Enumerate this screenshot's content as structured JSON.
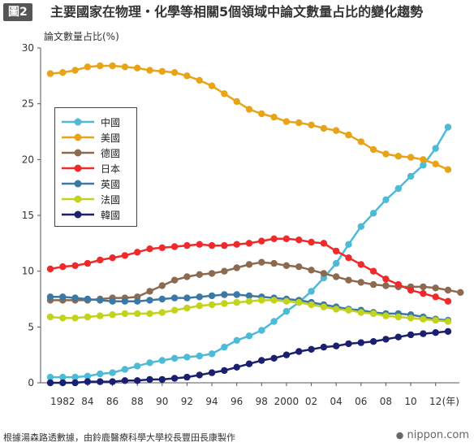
{
  "header": {
    "badge": "圖2",
    "title": "主要國家在物理・化學等相關5個領域中論文數量占比的變化趨勢"
  },
  "source": "根據湯森路透數據，由鈴鹿醫療科學大學校長豐田長康製作",
  "logo": "nippon.com",
  "colors": {
    "china": "#4dbad6",
    "usa": "#e8a317",
    "germany": "#8b6a50",
    "japan": "#ee2a2a",
    "uk": "#3a78a6",
    "france": "#c3d21c",
    "korea": "#1a1f6e"
  },
  "chart_data": {
    "type": "line",
    "title": "主要國家在物理・化學等相關5個領域中論文數量占比的變化趨勢",
    "ylabel": "論文數量占比(%)",
    "xlabel": "(年)",
    "ylim": [
      0,
      30
    ],
    "yticks": [
      "0",
      "5",
      "10",
      "15",
      "20",
      "25",
      "30"
    ],
    "xlim": [
      1981,
      2014
    ],
    "xticks": [
      {
        "year": 1982,
        "label": "1982"
      },
      {
        "year": 1984,
        "label": "84"
      },
      {
        "year": 1986,
        "label": "86"
      },
      {
        "year": 1988,
        "label": "88"
      },
      {
        "year": 1990,
        "label": "90"
      },
      {
        "year": 1992,
        "label": "92"
      },
      {
        "year": 1994,
        "label": "94"
      },
      {
        "year": 1996,
        "label": "96"
      },
      {
        "year": 1998,
        "label": "98"
      },
      {
        "year": 2000,
        "label": "2000"
      },
      {
        "year": 2002,
        "label": "02"
      },
      {
        "year": 2004,
        "label": "04"
      },
      {
        "year": 2006,
        "label": "06"
      },
      {
        "year": 2008,
        "label": "08"
      },
      {
        "year": 2010,
        "label": "10"
      },
      {
        "year": 2012,
        "label": "12"
      }
    ],
    "grid": false,
    "legend_position": "upper-left",
    "x": [
      1981,
      1982,
      1983,
      1984,
      1985,
      1986,
      1987,
      1988,
      1989,
      1990,
      1991,
      1992,
      1993,
      1994,
      1995,
      1996,
      1997,
      1998,
      1999,
      2000,
      2001,
      2002,
      2003,
      2004,
      2005,
      2006,
      2007,
      2008,
      2009,
      2010,
      2011,
      2012,
      2013,
      2014
    ],
    "series": [
      {
        "key": "china",
        "name": "中國",
        "values": [
          0.5,
          0.5,
          0.5,
          0.6,
          0.8,
          0.9,
          1.2,
          1.5,
          1.8,
          2.0,
          2.2,
          2.3,
          2.4,
          2.6,
          3.2,
          3.8,
          4.2,
          4.7,
          5.5,
          6.4,
          7.2,
          8.2,
          9.4,
          10.7,
          12.4,
          14.0,
          15.2,
          16.4,
          17.4,
          18.5,
          19.5,
          21.0,
          22.9,
          null
        ]
      },
      {
        "key": "usa",
        "name": "美國",
        "values": [
          27.7,
          27.8,
          28.0,
          28.3,
          28.4,
          28.4,
          28.3,
          28.2,
          28.0,
          27.9,
          27.8,
          27.5,
          27.1,
          26.6,
          25.9,
          25.2,
          24.5,
          24.1,
          23.8,
          23.4,
          23.3,
          23.1,
          22.8,
          22.6,
          22.2,
          21.6,
          20.9,
          20.5,
          20.3,
          20.2,
          20.0,
          19.6,
          19.1,
          null
        ]
      },
      {
        "key": "germany",
        "name": "德國",
        "values": [
          7.4,
          7.4,
          7.4,
          7.4,
          7.5,
          7.6,
          7.6,
          7.7,
          8.2,
          8.7,
          9.2,
          9.5,
          9.7,
          9.8,
          10.0,
          10.3,
          10.6,
          10.8,
          10.7,
          10.5,
          10.4,
          10.1,
          9.8,
          9.5,
          9.2,
          9.0,
          8.8,
          8.7,
          8.6,
          8.6,
          8.6,
          8.5,
          8.3,
          8.1
        ]
      },
      {
        "key": "japan",
        "name": "日本",
        "values": [
          10.2,
          10.4,
          10.5,
          10.7,
          11.0,
          11.2,
          11.4,
          11.7,
          12.0,
          12.1,
          12.2,
          12.3,
          12.4,
          12.3,
          12.3,
          12.4,
          12.5,
          12.7,
          12.9,
          12.9,
          12.8,
          12.6,
          12.5,
          11.8,
          11.2,
          10.6,
          10.0,
          9.3,
          8.8,
          8.3,
          8.0,
          7.7,
          7.3,
          null
        ]
      },
      {
        "key": "uk",
        "name": "英國",
        "values": [
          7.7,
          7.7,
          7.6,
          7.5,
          7.4,
          7.3,
          7.3,
          7.3,
          7.4,
          7.5,
          7.6,
          7.6,
          7.7,
          7.8,
          7.9,
          7.9,
          7.8,
          7.7,
          7.6,
          7.5,
          7.4,
          7.2,
          7.0,
          6.8,
          6.6,
          6.5,
          6.3,
          6.2,
          6.2,
          6.1,
          5.9,
          5.7,
          5.6,
          null
        ]
      },
      {
        "key": "france",
        "name": "法國",
        "values": [
          5.9,
          5.8,
          5.8,
          5.9,
          6.0,
          6.1,
          6.2,
          6.2,
          6.2,
          6.3,
          6.5,
          6.7,
          6.9,
          7.0,
          7.1,
          7.2,
          7.3,
          7.4,
          7.4,
          7.3,
          7.2,
          7.0,
          6.8,
          6.6,
          6.5,
          6.3,
          6.2,
          6.0,
          5.9,
          5.8,
          5.7,
          5.6,
          5.5,
          null
        ]
      },
      {
        "key": "korea",
        "name": "韓國",
        "values": [
          0.0,
          0.0,
          0.0,
          0.1,
          0.1,
          0.1,
          0.2,
          0.2,
          0.3,
          0.3,
          0.4,
          0.5,
          0.7,
          0.9,
          1.1,
          1.4,
          1.7,
          2.0,
          2.2,
          2.5,
          2.8,
          3.0,
          3.2,
          3.3,
          3.5,
          3.6,
          3.7,
          3.9,
          4.1,
          4.3,
          4.4,
          4.5,
          4.6,
          null
        ]
      }
    ]
  }
}
